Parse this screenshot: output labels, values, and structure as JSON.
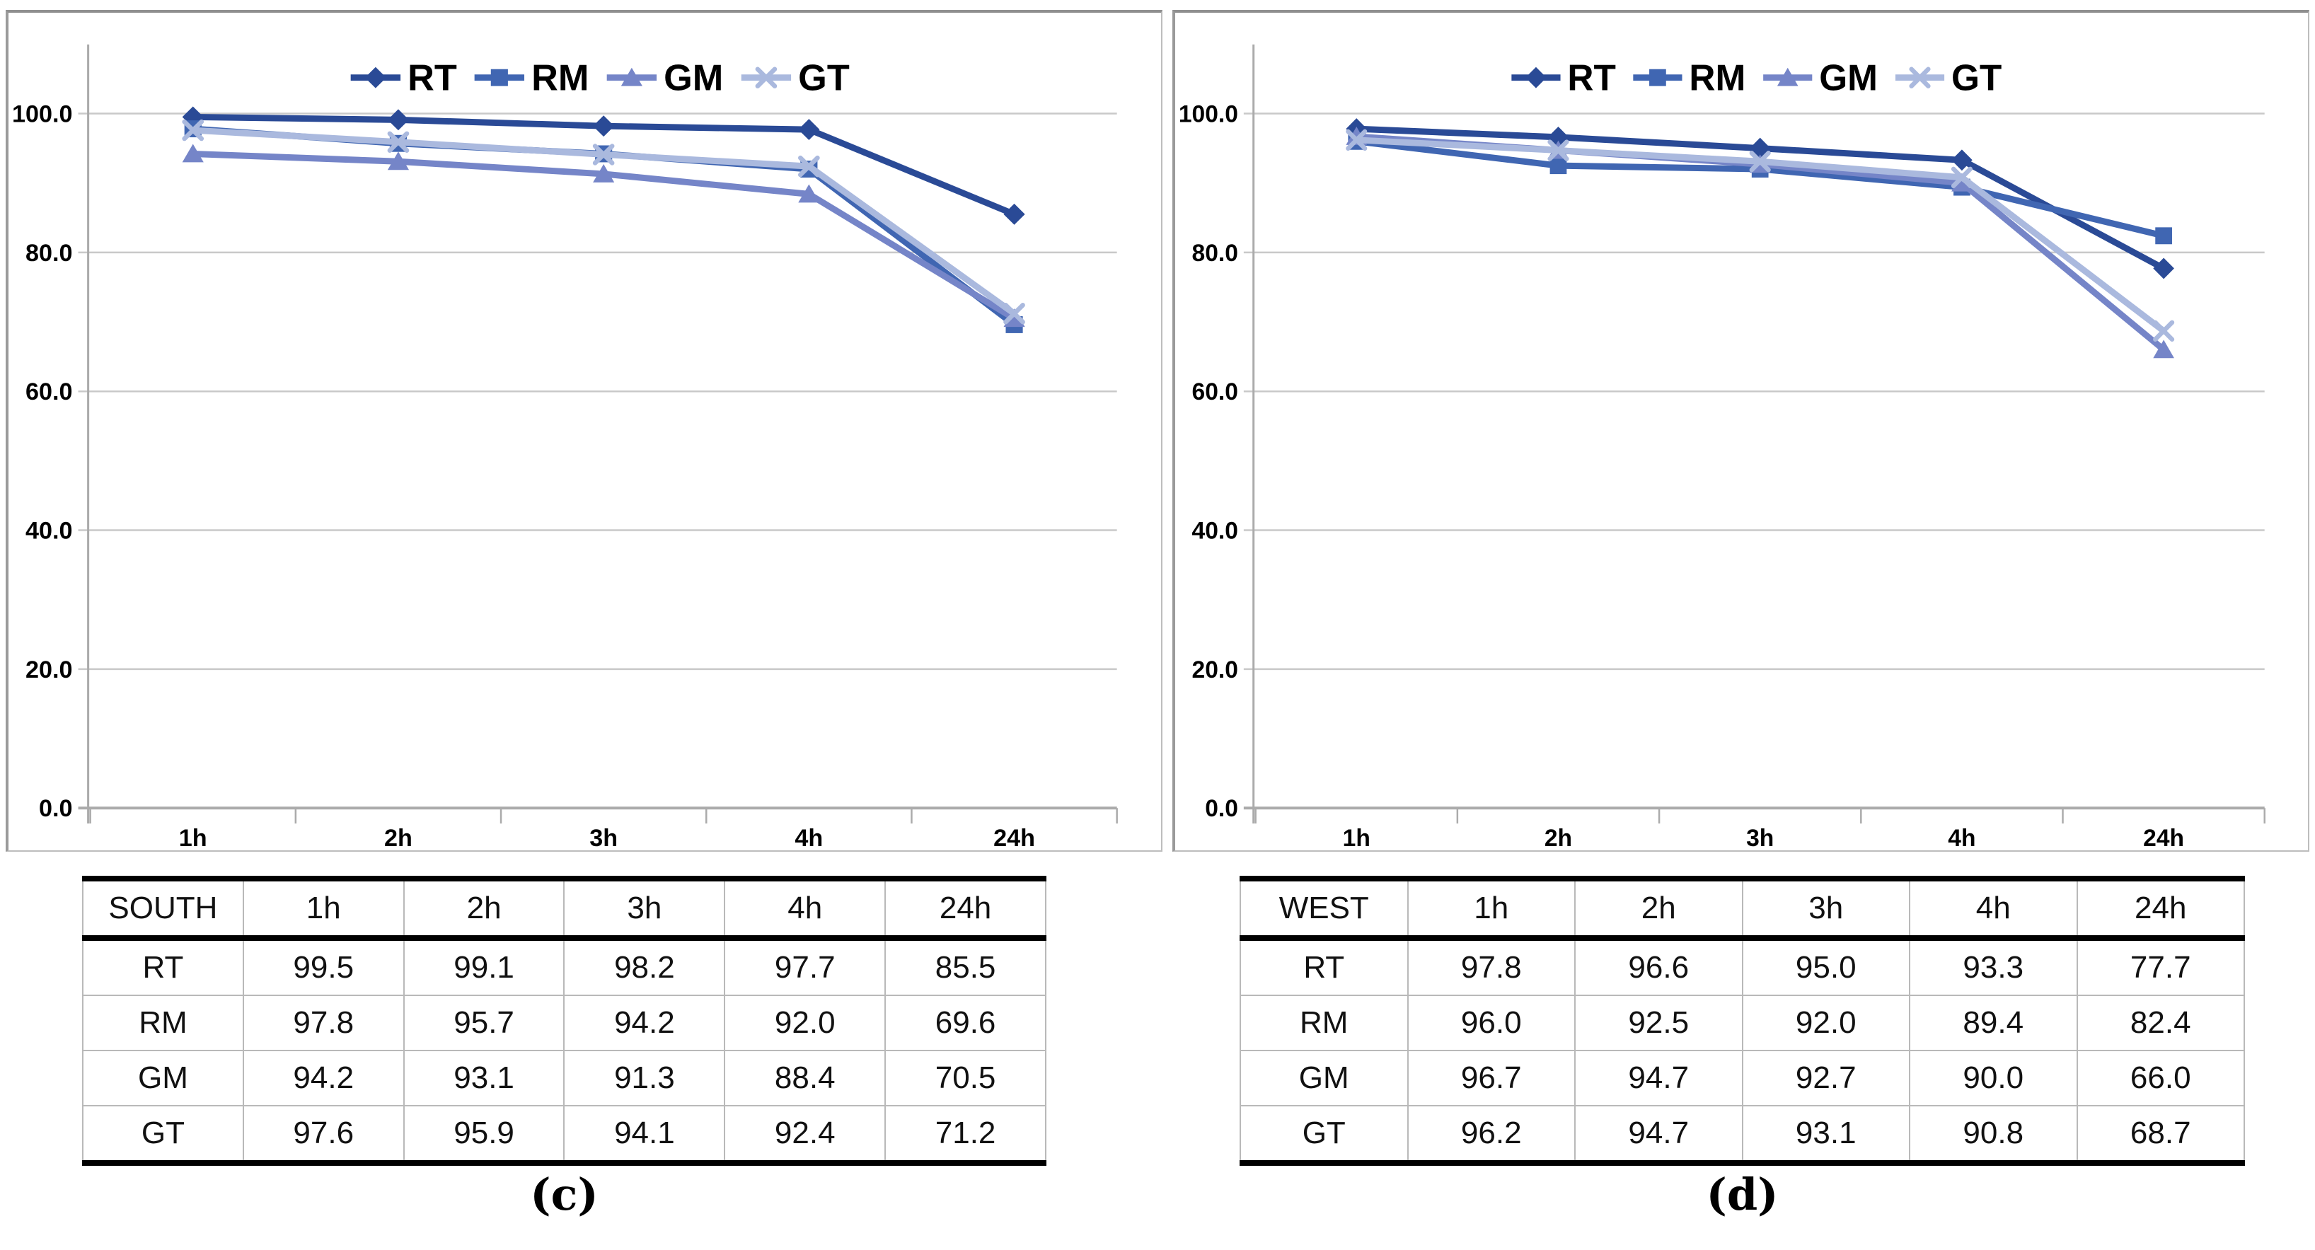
{
  "captions": [
    "(c)",
    "(d)"
  ],
  "colors": {
    "gridline": "#C9C9C9",
    "axis": "#ABABAB",
    "zero_line": "#ABABAB",
    "text": "#000000",
    "box_border": "#BDBDBD",
    "table_heavy_border": "#000000",
    "table_light_border": "#B9B9B9"
  },
  "chart_data": [
    {
      "type": "line",
      "title": "",
      "region": "SOUTH",
      "categories": [
        "1h",
        "2h",
        "3h",
        "4h",
        "24h"
      ],
      "series": [
        {
          "name": "RT",
          "marker": "diamond",
          "color": "#2A4A96",
          "values": [
            99.5,
            99.1,
            98.2,
            97.7,
            85.5
          ]
        },
        {
          "name": "RM",
          "marker": "square",
          "color": "#4066B2",
          "values": [
            97.8,
            95.7,
            94.2,
            92.0,
            69.6
          ]
        },
        {
          "name": "GM",
          "marker": "triangle",
          "color": "#7585C8",
          "values": [
            94.2,
            93.1,
            91.3,
            88.4,
            70.5
          ]
        },
        {
          "name": "GT",
          "marker": "x",
          "color": "#AAB9DE",
          "values": [
            97.6,
            95.9,
            94.1,
            92.4,
            71.2
          ]
        }
      ],
      "ylim": [
        0,
        110
      ],
      "yticks": [
        0,
        20,
        40,
        60,
        80,
        100
      ],
      "ytick_labels": [
        "0.0",
        "20.0",
        "40.0",
        "60.0",
        "80.0",
        "100.0"
      ],
      "legend_position": "top-center",
      "grid": "horizontal"
    },
    {
      "type": "line",
      "title": "",
      "region": "WEST",
      "categories": [
        "1h",
        "2h",
        "3h",
        "4h",
        "24h"
      ],
      "series": [
        {
          "name": "RT",
          "marker": "diamond",
          "color": "#2A4A96",
          "values": [
            97.8,
            96.6,
            95.0,
            93.3,
            77.7
          ]
        },
        {
          "name": "RM",
          "marker": "square",
          "color": "#4066B2",
          "values": [
            96.0,
            92.5,
            92.0,
            89.4,
            82.4
          ]
        },
        {
          "name": "GM",
          "marker": "triangle",
          "color": "#7585C8",
          "values": [
            96.7,
            94.7,
            92.7,
            90.0,
            66.0
          ]
        },
        {
          "name": "GT",
          "marker": "x",
          "color": "#AAB9DE",
          "values": [
            96.2,
            94.7,
            93.1,
            90.8,
            68.7
          ]
        }
      ],
      "ylim": [
        0,
        110
      ],
      "yticks": [
        0,
        20,
        40,
        60,
        80,
        100
      ],
      "ytick_labels": [
        "0.0",
        "20.0",
        "40.0",
        "60.0",
        "80.0",
        "100.0"
      ],
      "legend_position": "top-center",
      "grid": "horizontal"
    }
  ],
  "tables": [
    {
      "header": [
        "SOUTH",
        "1h",
        "2h",
        "3h",
        "4h",
        "24h"
      ],
      "rows": [
        [
          "RT",
          "99.5",
          "99.1",
          "98.2",
          "97.7",
          "85.5"
        ],
        [
          "RM",
          "97.8",
          "95.7",
          "94.2",
          "92.0",
          "69.6"
        ],
        [
          "GM",
          "94.2",
          "93.1",
          "91.3",
          "88.4",
          "70.5"
        ],
        [
          "GT",
          "97.6",
          "95.9",
          "94.1",
          "92.4",
          "71.2"
        ]
      ]
    },
    {
      "header": [
        "WEST",
        "1h",
        "2h",
        "3h",
        "4h",
        "24h"
      ],
      "rows": [
        [
          "RT",
          "97.8",
          "96.6",
          "95.0",
          "93.3",
          "77.7"
        ],
        [
          "RM",
          "96.0",
          "92.5",
          "92.0",
          "89.4",
          "82.4"
        ],
        [
          "GM",
          "96.7",
          "94.7",
          "92.7",
          "90.0",
          "66.0"
        ],
        [
          "GT",
          "96.2",
          "94.7",
          "93.1",
          "90.8",
          "68.7"
        ]
      ]
    }
  ]
}
